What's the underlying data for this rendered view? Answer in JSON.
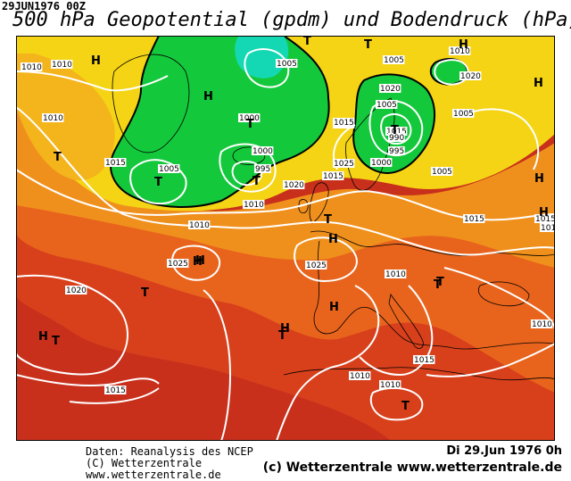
{
  "header": {
    "datestamp": "29JUN1976 00Z",
    "title": "500 hPa Geopotential (gpdm) und Bodendruck (hPa)"
  },
  "footer": {
    "source": "Daten: Reanalysis des NCEP",
    "copyright_small": "(C) Wetterzentrale",
    "url_small": "www.wetterzentrale.de",
    "valid_time": "Di 29.Jun 1976  0h",
    "copyright_big": "(c) Wetterzentrale  www.wetterzentrale.de"
  },
  "map": {
    "palette": {
      "high_dark_red": "#c0281c",
      "red": "#d8401c",
      "orange_red": "#e8641c",
      "orange": "#f0901c",
      "yellow": "#f4d414",
      "green": "#14c83c",
      "cyan": "#14d8b4",
      "isobar": "#ffffff",
      "coast": "#000000"
    },
    "pressure_labels": [
      "1010",
      "1010",
      "1015",
      "1005",
      "1000",
      "1000",
      "995",
      "1005",
      "1005",
      "1010",
      "1020",
      "1020",
      "1025",
      "1025",
      "1020",
      "1015",
      "1015",
      "1005",
      "1000",
      "995",
      "990",
      "1005",
      "1010",
      "1015",
      "1015",
      "1010",
      "1025",
      "1020",
      "1015",
      "1010",
      "1010",
      "1015",
      "1010",
      "1010",
      "1015",
      "1010",
      "1025",
      "1005",
      "1010"
    ],
    "pressure_systems": [
      "H",
      "T",
      "H",
      "T",
      "T",
      "T",
      "T",
      "H",
      "T",
      "H",
      "T",
      "H",
      "T",
      "H",
      "H",
      "T",
      "T",
      "T",
      "T",
      "T",
      "H",
      "H",
      "H",
      "T",
      "H",
      "H",
      "T",
      "H",
      "H"
    ]
  }
}
